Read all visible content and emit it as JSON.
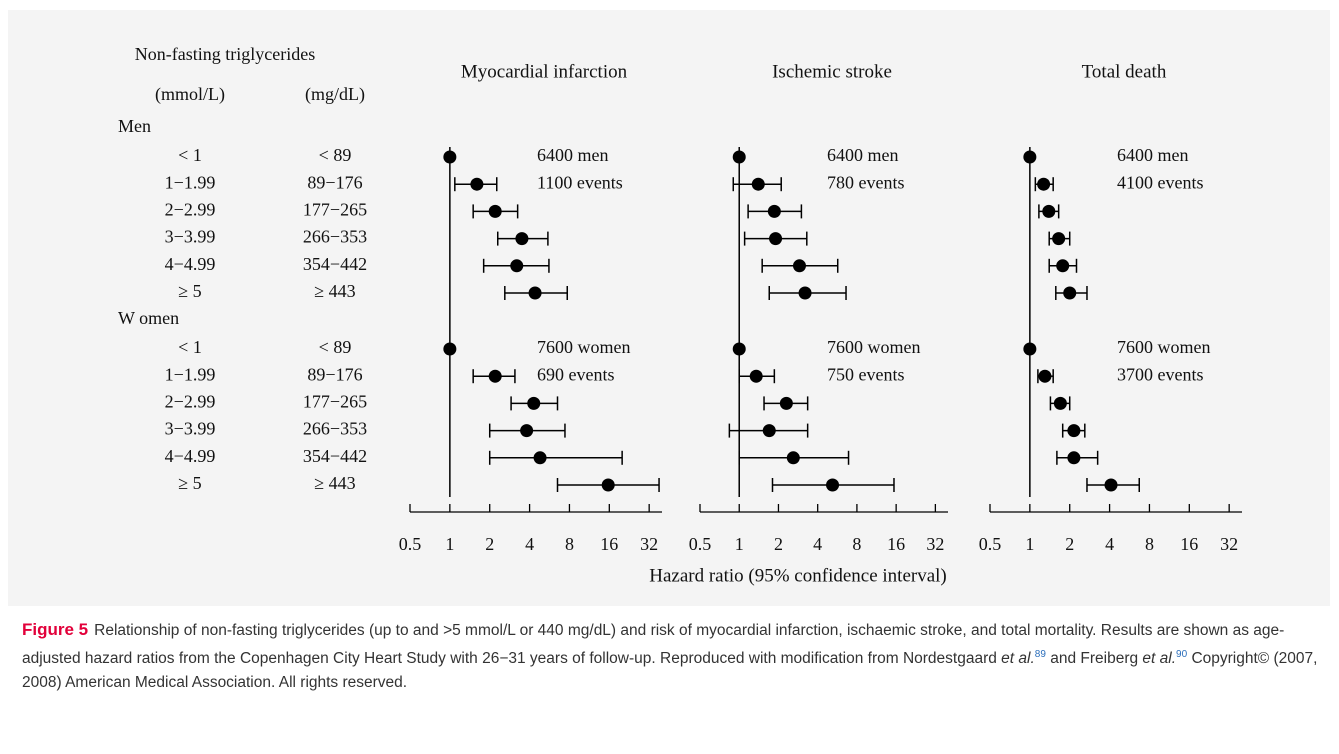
{
  "table": {
    "title": "Non-fasting triglycerides",
    "columns": [
      "(mmol/L)",
      "(mg/dL)"
    ],
    "groups": [
      {
        "name": "Men",
        "rows": [
          [
            "< 1",
            "< 89"
          ],
          [
            "1−1.99",
            "89−176"
          ],
          [
            "2−2.99",
            "177−265"
          ],
          [
            "3−3.99",
            "266−353"
          ],
          [
            "4−4.99",
            "354−442"
          ],
          [
            "≥ 5",
            "≥ 443"
          ]
        ]
      },
      {
        "name": "W omen",
        "rows": [
          [
            "< 1",
            "< 89"
          ],
          [
            "1−1.99",
            "89−176"
          ],
          [
            "2−2.99",
            "177−265"
          ],
          [
            "3−3.99",
            "266−353"
          ],
          [
            "4−4.99",
            "354−442"
          ],
          [
            "≥ 5",
            "≥ 443"
          ]
        ]
      }
    ]
  },
  "x_label": "Hazard ratio (95% confidence interval)",
  "chart_data": [
    {
      "type": "forest",
      "title": "Myocardial infarction",
      "log_x": true,
      "reference": 1,
      "color": "#000000",
      "xlim": [
        0.5,
        40
      ],
      "xticks": [
        0.5,
        1,
        2,
        4,
        8,
        16,
        32
      ],
      "groups": [
        {
          "annotations": [
            "6400 men",
            "1100 events"
          ],
          "values": [
            1,
            1.6,
            2.2,
            3.5,
            3.2,
            4.4
          ],
          "ci_low": [
            null,
            1.09,
            1.5,
            2.3,
            1.8,
            2.6
          ],
          "ci_high": [
            null,
            2.26,
            3.25,
            5.5,
            5.6,
            7.7
          ]
        },
        {
          "annotations": [
            "7600 women",
            "690 events"
          ],
          "values": [
            1,
            2.2,
            4.3,
            3.8,
            4.8,
            15.7
          ],
          "ci_low": [
            null,
            1.5,
            2.9,
            2.0,
            2.0,
            6.5
          ],
          "ci_high": [
            null,
            3.1,
            6.5,
            7.4,
            20,
            38
          ]
        }
      ]
    },
    {
      "type": "forest",
      "title": "Ischemic stroke",
      "log_x": true,
      "reference": 1,
      "color": "#000000",
      "xlim": [
        0.5,
        40
      ],
      "xticks": [
        0.5,
        1,
        2,
        4,
        8,
        16,
        32
      ],
      "groups": [
        {
          "annotations": [
            "6400 men",
            "780 events"
          ],
          "values": [
            1,
            1.4,
            1.86,
            1.9,
            2.9,
            3.2
          ],
          "ci_low": [
            null,
            0.9,
            1.17,
            1.1,
            1.5,
            1.7
          ],
          "ci_high": [
            null,
            2.1,
            3.0,
            3.3,
            5.7,
            6.6
          ]
        },
        {
          "annotations": [
            "7600 women",
            "750 events"
          ],
          "values": [
            1,
            1.35,
            2.3,
            1.7,
            2.6,
            5.2
          ],
          "ci_low": [
            null,
            1.0,
            1.55,
            0.84,
            1.0,
            1.8
          ],
          "ci_high": [
            null,
            1.86,
            3.35,
            3.35,
            6.9,
            15.4
          ]
        }
      ]
    },
    {
      "type": "forest",
      "title": "Total death",
      "log_x": true,
      "reference": 1,
      "color": "#000000",
      "xlim": [
        0.5,
        40
      ],
      "xticks": [
        0.5,
        1,
        2,
        4,
        8,
        16,
        32
      ],
      "groups": [
        {
          "annotations": [
            "6400 men",
            "4100 events"
          ],
          "values": [
            1,
            1.27,
            1.39,
            1.65,
            1.77,
            2.0
          ],
          "ci_low": [
            null,
            1.1,
            1.17,
            1.4,
            1.4,
            1.57
          ],
          "ci_high": [
            null,
            1.5,
            1.65,
            2.0,
            2.25,
            2.7
          ]
        },
        {
          "annotations": [
            "7600 women",
            "3700 events"
          ],
          "values": [
            1,
            1.3,
            1.7,
            2.15,
            2.15,
            4.1
          ],
          "ci_low": [
            null,
            1.15,
            1.43,
            1.77,
            1.6,
            2.7
          ],
          "ci_high": [
            null,
            1.5,
            2.0,
            2.6,
            3.25,
            6.7
          ]
        }
      ]
    }
  ],
  "caption": {
    "label": "Figure 5",
    "parts": [
      "Relationship of non-fasting triglycerides (up to and >5 mmol/L or 440 mg/dL) and risk of myocardial infarction, ischaemic stroke, and total mortality. Results are shown as age-adjusted hazard ratios from the Copenhagen City Heart Study with 26−31 years of follow-up. Reproduced with modification from Nordestgaard ",
      "et al.",
      "89",
      " and Freiberg ",
      "et al.",
      "90",
      " Copyright© (2007, 2008) American Medical Association. All rights reserved."
    ]
  }
}
